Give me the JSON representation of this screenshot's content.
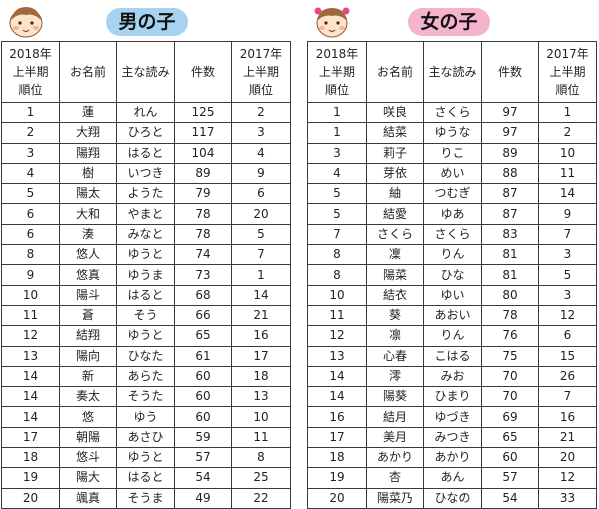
{
  "boys": {
    "title": "男の子",
    "headers": [
      "2018年\n上半期\n順位",
      "お名前",
      "主な読み",
      "件数",
      "2017年\n上半期\n順位"
    ],
    "rows": [
      [
        "1",
        "蓮",
        "れん",
        "125",
        "2"
      ],
      [
        "2",
        "大翔",
        "ひろと",
        "117",
        "3"
      ],
      [
        "3",
        "陽翔",
        "はると",
        "104",
        "4"
      ],
      [
        "4",
        "樹",
        "いつき",
        "89",
        "9"
      ],
      [
        "5",
        "陽太",
        "ようた",
        "79",
        "6"
      ],
      [
        "6",
        "大和",
        "やまと",
        "78",
        "20"
      ],
      [
        "6",
        "湊",
        "みなと",
        "78",
        "5"
      ],
      [
        "8",
        "悠人",
        "ゆうと",
        "74",
        "7"
      ],
      [
        "9",
        "悠真",
        "ゆうま",
        "73",
        "1"
      ],
      [
        "10",
        "陽斗",
        "はると",
        "68",
        "14"
      ],
      [
        "11",
        "蒼",
        "そう",
        "66",
        "21"
      ],
      [
        "12",
        "結翔",
        "ゆうと",
        "65",
        "16"
      ],
      [
        "13",
        "陽向",
        "ひなた",
        "61",
        "17"
      ],
      [
        "14",
        "新",
        "あらた",
        "60",
        "18"
      ],
      [
        "14",
        "奏太",
        "そうた",
        "60",
        "13"
      ],
      [
        "14",
        "悠",
        "ゆう",
        "60",
        "10"
      ],
      [
        "17",
        "朝陽",
        "あさひ",
        "59",
        "11"
      ],
      [
        "18",
        "悠斗",
        "ゆうと",
        "57",
        "8"
      ],
      [
        "19",
        "陽大",
        "はると",
        "54",
        "25"
      ],
      [
        "20",
        "颯真",
        "そうま",
        "49",
        "22"
      ]
    ]
  },
  "girls": {
    "title": "女の子",
    "headers": [
      "2018年\n上半期\n順位",
      "お名前",
      "主な読み",
      "件数",
      "2017年\n上半期\n順位"
    ],
    "rows": [
      [
        "1",
        "咲良",
        "さくら",
        "97",
        "1"
      ],
      [
        "1",
        "結菜",
        "ゆうな",
        "97",
        "2"
      ],
      [
        "3",
        "莉子",
        "りこ",
        "89",
        "10"
      ],
      [
        "4",
        "芽依",
        "めい",
        "88",
        "11"
      ],
      [
        "5",
        "紬",
        "つむぎ",
        "87",
        "14"
      ],
      [
        "5",
        "結愛",
        "ゆあ",
        "87",
        "9"
      ],
      [
        "7",
        "さくら",
        "さくら",
        "83",
        "7"
      ],
      [
        "8",
        "凜",
        "りん",
        "81",
        "3"
      ],
      [
        "8",
        "陽菜",
        "ひな",
        "81",
        "5"
      ],
      [
        "10",
        "結衣",
        "ゆい",
        "80",
        "3"
      ],
      [
        "11",
        "葵",
        "あおい",
        "78",
        "12"
      ],
      [
        "12",
        "凛",
        "りん",
        "76",
        "6"
      ],
      [
        "13",
        "心春",
        "こはる",
        "75",
        "15"
      ],
      [
        "14",
        "澪",
        "みお",
        "70",
        "26"
      ],
      [
        "14",
        "陽葵",
        "ひまり",
        "70",
        "7"
      ],
      [
        "16",
        "結月",
        "ゆづき",
        "69",
        "16"
      ],
      [
        "17",
        "美月",
        "みつき",
        "65",
        "21"
      ],
      [
        "18",
        "あかり",
        "あかり",
        "60",
        "20"
      ],
      [
        "19",
        "杏",
        "あん",
        "57",
        "12"
      ],
      [
        "20",
        "陽菜乃",
        "ひなの",
        "54",
        "33"
      ]
    ]
  },
  "icons": {
    "boys": "baby-boy-face-icon",
    "girls": "baby-girl-face-icon"
  },
  "colors": {
    "boys_pill": "#a8d3f0",
    "girls_pill": "#f4b4cd",
    "border": "#3a3a3a"
  }
}
